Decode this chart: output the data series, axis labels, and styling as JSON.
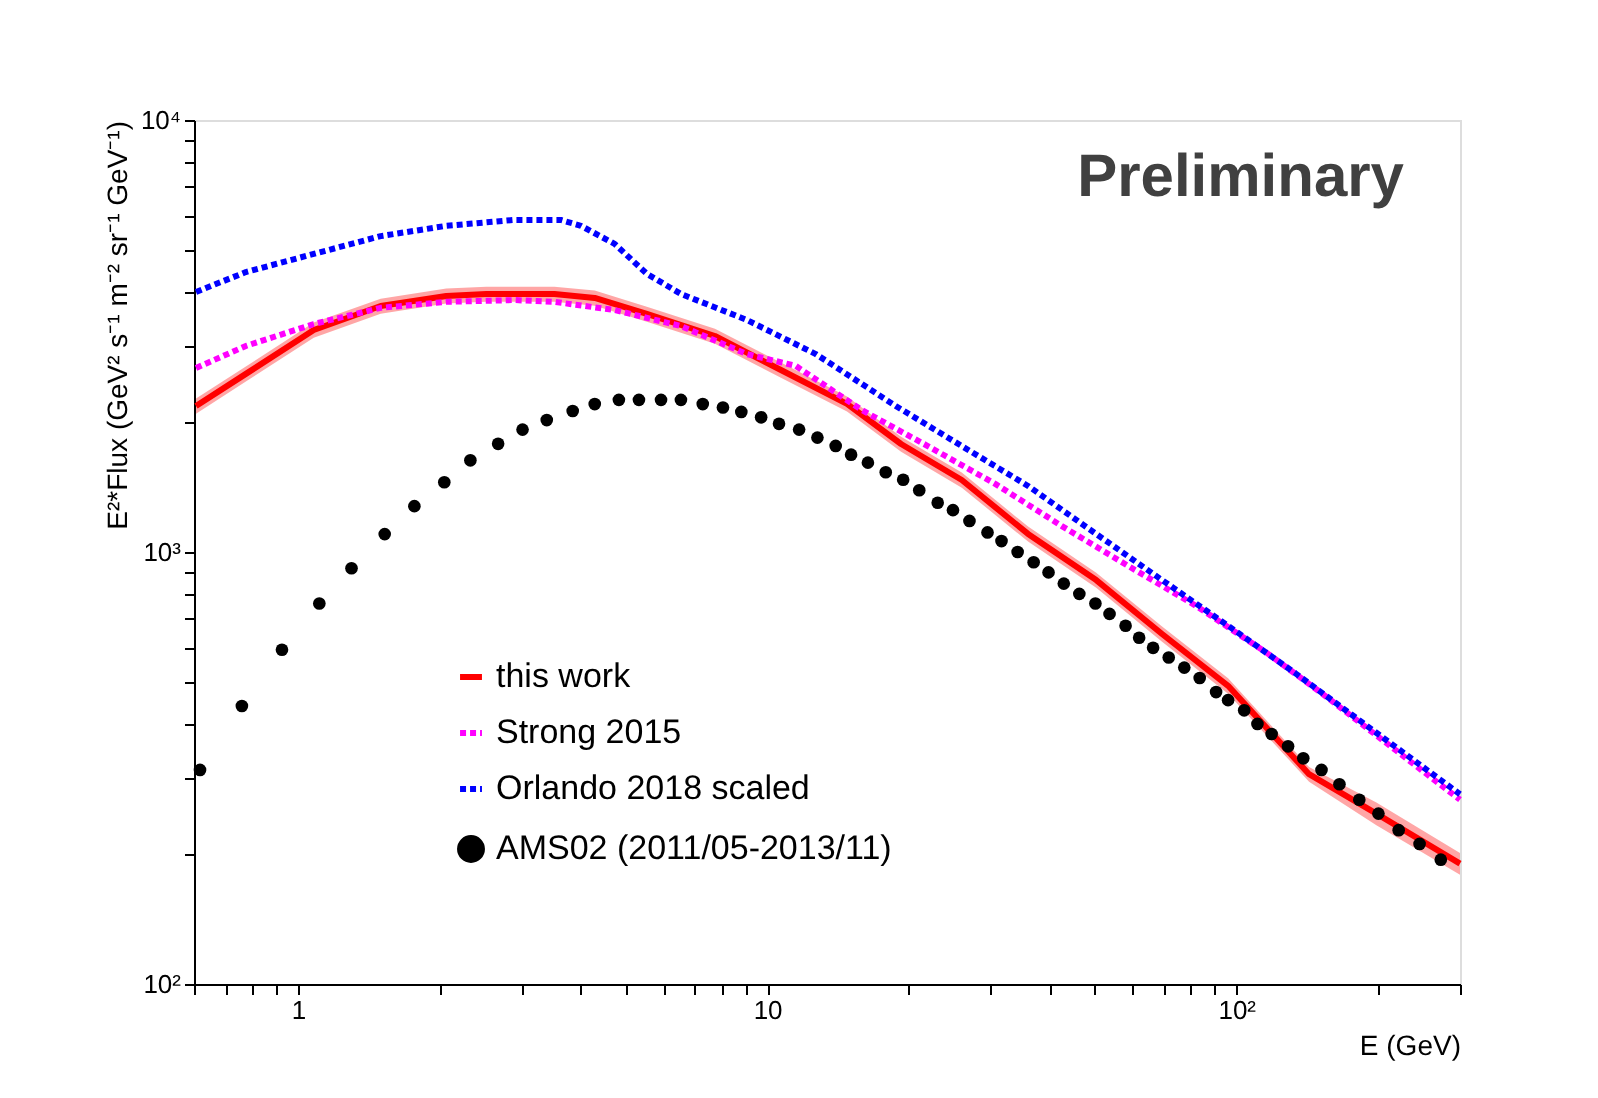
{
  "chart_data": {
    "type": "line",
    "xlabel": "E (GeV)",
    "ylabel": "E²*Flux (GeV² s⁻¹ m⁻² sr⁻¹ GeV⁻¹)",
    "annotations": [
      "Preliminary"
    ],
    "log": "xy",
    "legend": "bottom left",
    "xlim": [
      0.6,
      300
    ],
    "ylim": [
      100,
      10000
    ],
    "xticks": [
      {
        "value": 0.6,
        "label": null
      },
      {
        "value": 0.7,
        "label": null
      },
      {
        "value": 0.8,
        "label": null
      },
      {
        "value": 0.9,
        "label": null
      },
      1,
      {
        "value": 2,
        "label": null
      },
      {
        "value": 3,
        "label": null
      },
      {
        "value": 4,
        "label": null
      },
      {
        "value": 5,
        "label": null
      },
      {
        "value": 6,
        "label": null
      },
      {
        "value": 7,
        "label": null
      },
      {
        "value": 8,
        "label": null
      },
      {
        "value": 9,
        "label": null
      },
      10,
      {
        "value": 20,
        "label": null
      },
      {
        "value": 30,
        "label": null
      },
      {
        "value": 40,
        "label": null
      },
      {
        "value": 50,
        "label": null
      },
      {
        "value": 60,
        "label": null
      },
      {
        "value": 70,
        "label": null
      },
      {
        "value": 80,
        "label": null
      },
      {
        "value": 90,
        "label": null
      },
      {
        "value": 100,
        "label": "10²"
      },
      {
        "value": 200,
        "label": null
      },
      {
        "value": 300,
        "label": null
      }
    ],
    "yticks": [
      {
        "value": 100,
        "label": "10²"
      },
      {
        "value": 200,
        "label": null
      },
      {
        "value": 300,
        "label": null
      },
      {
        "value": 400,
        "label": null
      },
      {
        "value": 500,
        "label": null
      },
      {
        "value": 600,
        "label": null
      },
      {
        "value": 700,
        "label": null
      },
      {
        "value": 800,
        "label": null
      },
      {
        "value": 900,
        "label": null
      },
      {
        "value": 1000,
        "label": "10³"
      },
      {
        "value": 2000,
        "label": null
      },
      {
        "value": 3000,
        "label": null
      },
      {
        "value": 4000,
        "label": null
      },
      {
        "value": 5000,
        "label": null
      },
      {
        "value": 6000,
        "label": null
      },
      {
        "value": 7000,
        "label": null
      },
      {
        "value": 8000,
        "label": null
      },
      {
        "value": 9000,
        "label": null
      },
      {
        "value": 10000,
        "label": "10⁴"
      }
    ],
    "series": [
      {
        "name": "this work",
        "line_style": "solid",
        "color": "#ff0000",
        "x": [
          0.606,
          0.774,
          1.08,
          1.5,
          2.07,
          2.52,
          3.52,
          4.29,
          5.54,
          7.74,
          10.7,
          14.8,
          19.3,
          26.0,
          36.0,
          50.3,
          69.5,
          96.1,
          143,
          199,
          300
        ],
        "values": [
          2178,
          2584,
          3265,
          3710,
          3915,
          3955,
          3955,
          3873,
          3556,
          3162,
          2638,
          2202,
          1778,
          1468,
          1101,
          861,
          646,
          490,
          306,
          248,
          190
        ],
        "lower": [
          2090,
          2480,
          3134,
          3562,
          3758,
          3797,
          3797,
          3718,
          3414,
          3036,
          2532,
          2114,
          1707,
          1409,
          1057,
          827,
          620,
          470,
          294,
          233,
          179
        ],
        "upper": [
          2265,
          2687,
          3396,
          3858,
          4072,
          4113,
          4113,
          4028,
          3698,
          3288,
          2744,
          2290,
          1849,
          1527,
          1145,
          895,
          672,
          510,
          318,
          263,
          201
        ]
      },
      {
        "name": "Strong 2015",
        "line_style": "dotted",
        "color": "#ff00ff",
        "x": [
          0.606,
          0.774,
          1.08,
          1.5,
          2.07,
          2.89,
          3.52,
          4.73,
          6.55,
          9.06,
          11.5,
          15.9,
          22.0,
          30.7,
          42.5,
          58.8,
          82.2,
          117,
          153,
          300
        ],
        "values": [
          2667,
          2999,
          3371,
          3674,
          3794,
          3830,
          3794,
          3631,
          3334,
          2871,
          2698,
          2132,
          1759,
          1436,
          1148,
          929,
          750,
          581,
          469,
          267
        ]
      },
      {
        "name": "Orlando 2018 scaled",
        "line_style": "dotted",
        "color": "#0000ff",
        "x": [
          0.606,
          0.774,
          1.08,
          1.5,
          2.07,
          2.89,
          3.63,
          4.01,
          4.73,
          5.54,
          6.55,
          9.06,
          12.7,
          18.8,
          26.0,
          36.0,
          50.3,
          69.5,
          96.1,
          134,
          300
        ],
        "values": [
          3999,
          4446,
          4898,
          5385,
          5689,
          5871,
          5871,
          5689,
          5166,
          4406,
          3957,
          3443,
          2871,
          2178,
          1759,
          1422,
          1101,
          861,
          675,
          523,
          275
        ]
      },
      {
        "name": "AMS02 (2011/05-2013/11)",
        "type": "scatter",
        "marker": "circle",
        "color": "#000000",
        "x": [
          0.618,
          0.759,
          0.924,
          1.11,
          1.3,
          1.53,
          1.77,
          2.05,
          2.33,
          2.67,
          3.01,
          3.39,
          3.85,
          4.29,
          4.83,
          5.33,
          5.94,
          6.55,
          7.29,
          8.05,
          8.81,
          9.71,
          10.6,
          11.7,
          12.8,
          14.0,
          15.1,
          16.4,
          17.9,
          19.5,
          21.1,
          23.1,
          24.9,
          27.0,
          29.5,
          31.6,
          34.2,
          37.0,
          39.8,
          42.9,
          46.3,
          50.1,
          53.7,
          58.1,
          62.1,
          66.5,
          71.8,
          77.5,
          83.6,
          90.6,
          96.1,
          104,
          111,
          119,
          129,
          139,
          152,
          166,
          183,
          201,
          222,
          246,
          273
        ],
        "values": [
          313,
          440,
          594,
          760,
          917,
          1100,
          1277,
          1450,
          1630,
          1780,
          1920,
          2020,
          2120,
          2200,
          2250,
          2250,
          2250,
          2250,
          2200,
          2160,
          2110,
          2050,
          1980,
          1920,
          1840,
          1760,
          1680,
          1610,
          1530,
          1470,
          1390,
          1300,
          1250,
          1180,
          1110,
          1060,
          1000,
          947,
          897,
          845,
          800,
          760,
          719,
          675,
          633,
          600,
          570,
          540,
          511,
          474,
          454,
          430,
          400,
          379,
          355,
          333,
          313,
          290,
          267,
          248,
          227,
          211,
          194
        ]
      }
    ]
  }
}
